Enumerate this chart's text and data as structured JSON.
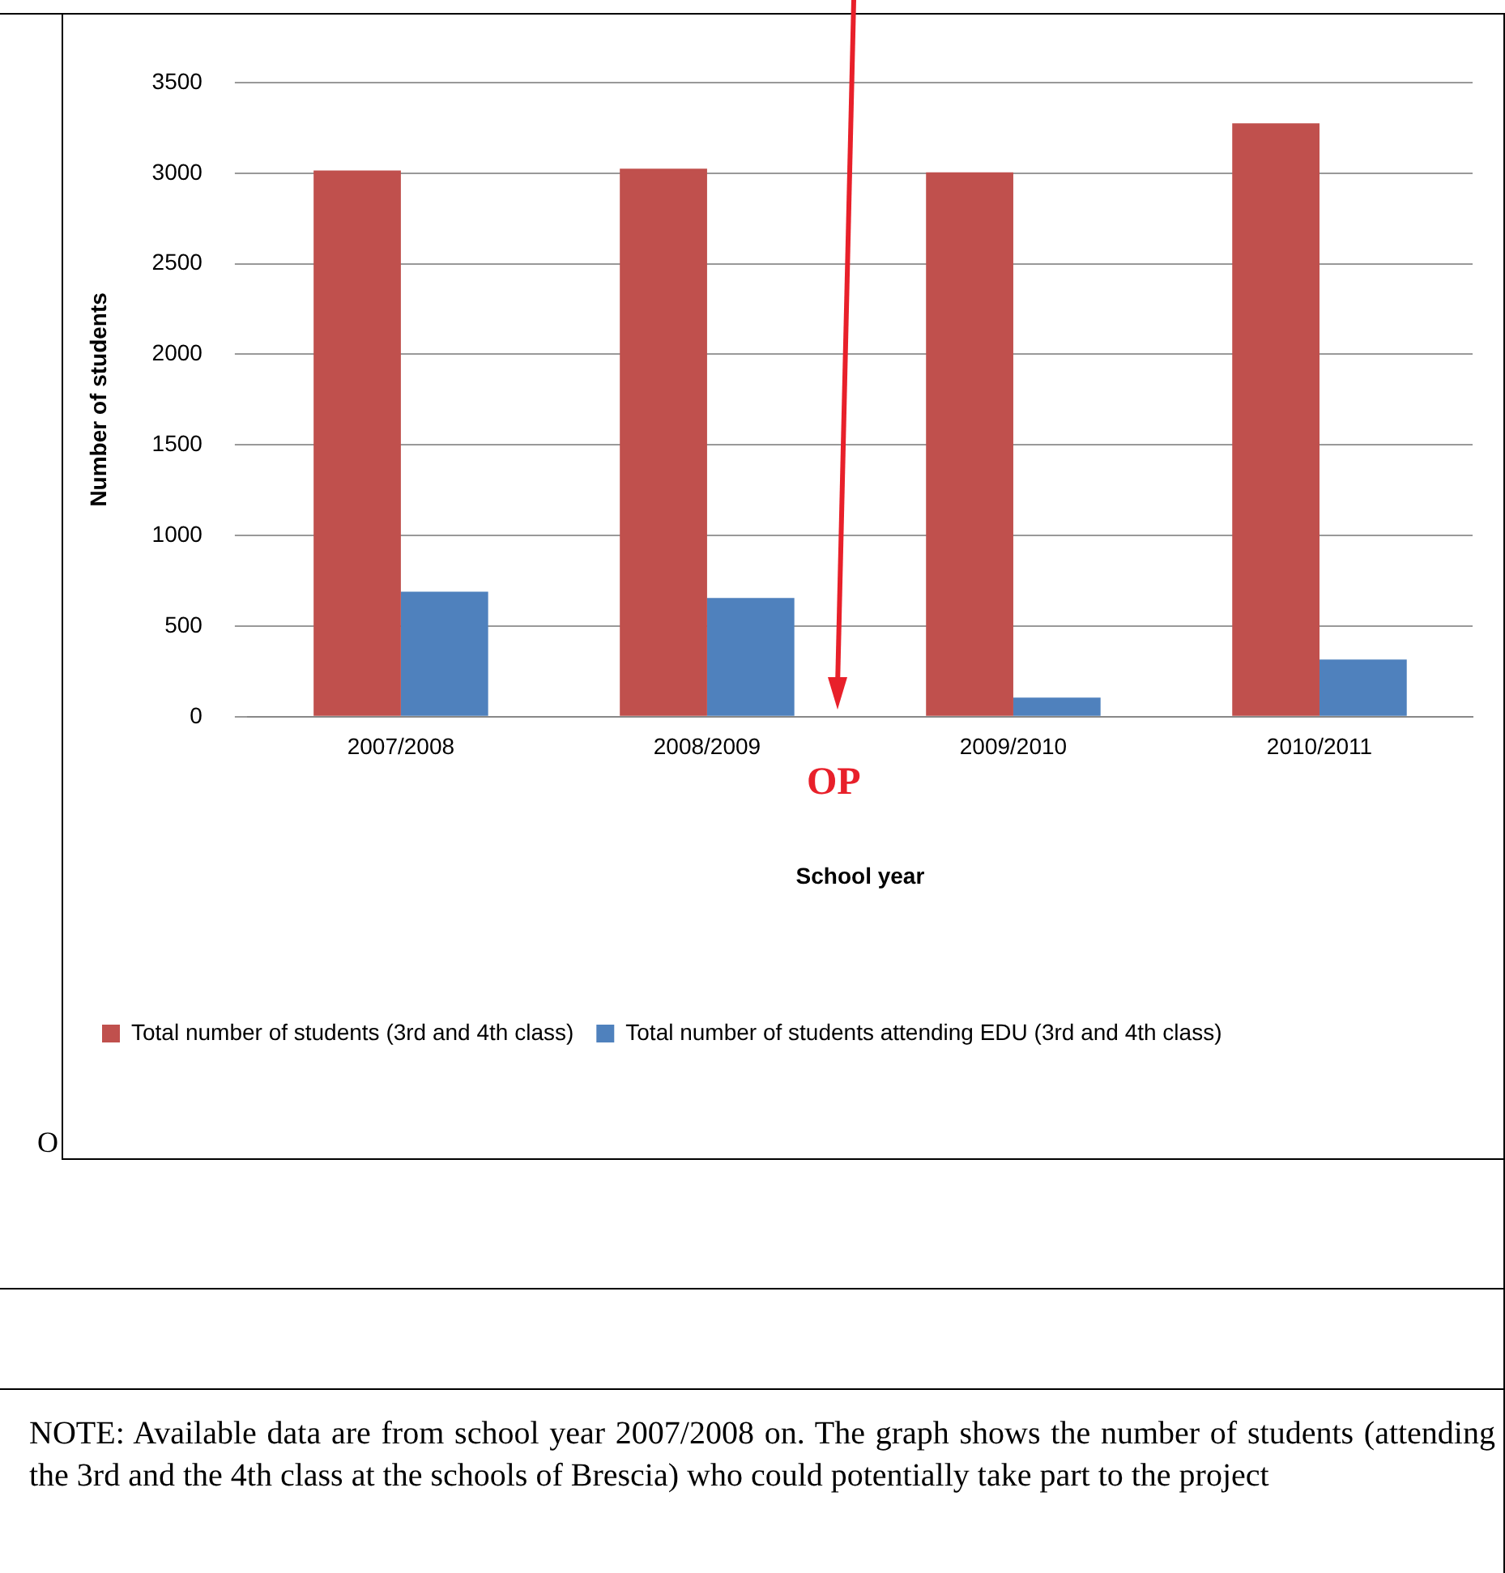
{
  "chart_data": {
    "type": "bar",
    "xlabel": "School year",
    "ylabel": "Number of students",
    "categories": [
      "2007/2008",
      "2008/2009",
      "2009/2010",
      "2010/2011"
    ],
    "series": [
      {
        "name": "Total number of students (3rd and 4th class)",
        "color": "#c0504d",
        "values": [
          3015,
          3025,
          3005,
          3275
        ]
      },
      {
        "name": "Total number of students attending EDU (3rd and 4th class)",
        "color": "#4f81bd",
        "values": [
          690,
          655,
          105,
          315
        ]
      }
    ],
    "ylim": [
      0,
      3500
    ],
    "yticks": [
      0,
      500,
      1000,
      1500,
      2000,
      2500,
      3000,
      3500
    ],
    "grid": "y",
    "legend": "bottom",
    "annotations": [
      "OP",
      "O",
      "NOTE: Available data are from school year 2007/2008 on. The graph shows the number of students (attending the 3rd and the 4th class at the schools of Brescia) who could potentially take part to the project"
    ]
  }
}
